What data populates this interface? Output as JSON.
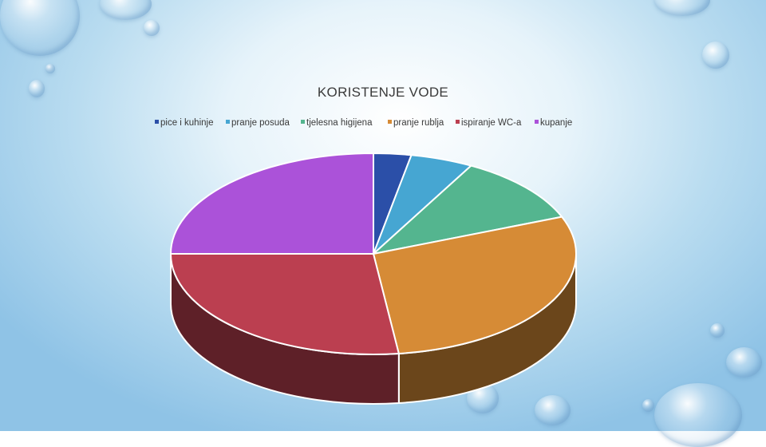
{
  "chart_data": {
    "type": "pie",
    "title": "KORISTENJE VODE",
    "legend_position": "top",
    "three_d": true,
    "categories": [
      "pice i kuhinje",
      "pranje posuda",
      "tjelesna higijena",
      "pranje rublja",
      "ispiranje WC-a",
      "kupanje"
    ],
    "values": [
      3,
      5,
      11,
      29,
      27,
      25
    ],
    "colors": [
      "#2b4fa8",
      "#46a6d2",
      "#54b58f",
      "#d68b36",
      "#bb3f50",
      "#ab52d9"
    ]
  }
}
